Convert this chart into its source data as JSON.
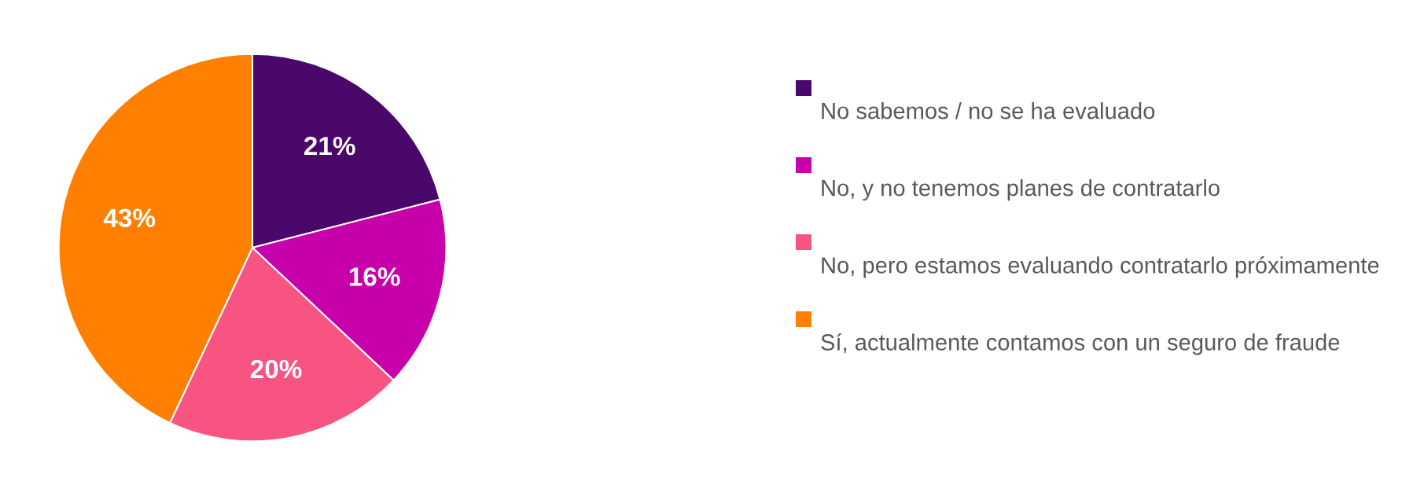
{
  "chart_data": {
    "type": "pie",
    "categories": [
      "No sabemos / no se ha evaluado",
      "No, y no tenemos planes de contratarlo",
      "No, pero estamos evaluando contratarlo próximamente",
      "Sí, actualmente contamos con un seguro de fraude"
    ],
    "values": [
      21,
      16,
      20,
      43
    ],
    "value_labels": [
      "21%",
      "16%",
      "20%",
      "43%"
    ],
    "colors": [
      "#4b086b",
      "#c800ac",
      "#f75482",
      "#ff8000"
    ],
    "legend": "right"
  }
}
